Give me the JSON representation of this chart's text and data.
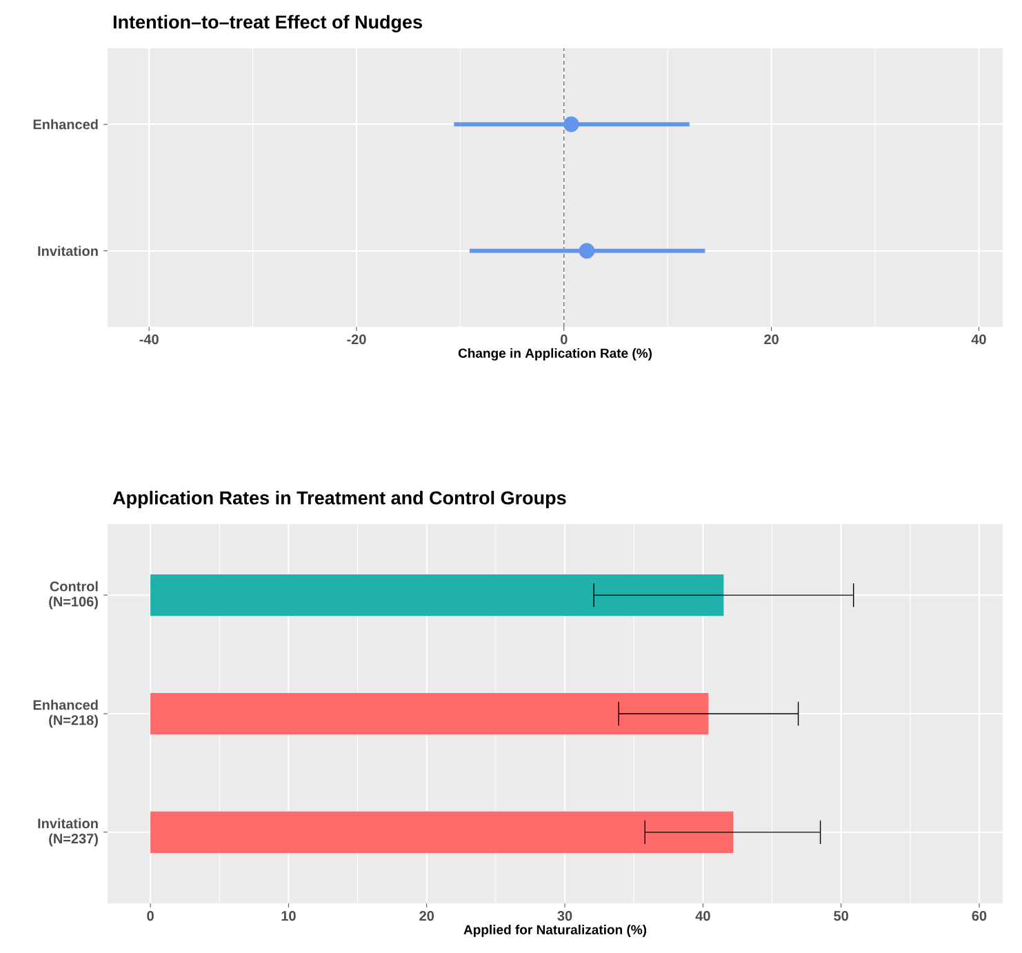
{
  "chart_data": [
    {
      "type": "scatter",
      "orientation": "horizontal",
      "title": "Intention–to–treat Effect of Nudges",
      "xlabel": "Change in Application Rate (%)",
      "categories": [
        "Enhanced",
        "Invitation"
      ],
      "values": [
        0.7,
        2.2
      ],
      "errors": [
        [
          -10.6,
          12.1
        ],
        [
          -9.1,
          13.6
        ]
      ],
      "color": "#6495ed",
      "marker": "circle",
      "xlim": [
        -44,
        42.3
      ],
      "xticks": [
        -40,
        {
          "value": -30,
          "label": null
        },
        -20,
        {
          "value": -10,
          "label": null
        },
        0,
        {
          "value": 10,
          "label": null
        },
        20,
        {
          "value": 30,
          "label": null
        },
        40
      ],
      "ref_lines": [
        {
          "axis": "x",
          "value": 0,
          "line_style": "dashed",
          "color": "#555555"
        }
      ],
      "grid": true
    },
    {
      "type": "bar",
      "orientation": "horizontal",
      "title": "Application Rates in Treatment and Control Groups",
      "xlabel": "Applied for Naturalization (%)",
      "categories": [
        "Control (N=106)",
        "Enhanced (N=218)",
        "Invitation (N=237)"
      ],
      "values": [
        41.5,
        40.4,
        42.2
      ],
      "errors": [
        [
          32.1,
          50.9
        ],
        [
          33.9,
          46.9
        ],
        [
          35.8,
          48.5
        ]
      ],
      "colors": [
        "#20b2aa",
        "#ff6a6a",
        "#ff6a6a"
      ],
      "xlim": [
        -3.1,
        61.7
      ],
      "xticks": [
        0,
        {
          "value": 5,
          "label": null
        },
        10,
        {
          "value": 15,
          "label": null
        },
        20,
        {
          "value": 25,
          "label": null
        },
        30,
        {
          "value": 35,
          "label": null
        },
        40,
        {
          "value": 45,
          "label": null
        },
        50,
        {
          "value": 55,
          "label": null
        },
        60
      ],
      "grid": true
    }
  ]
}
